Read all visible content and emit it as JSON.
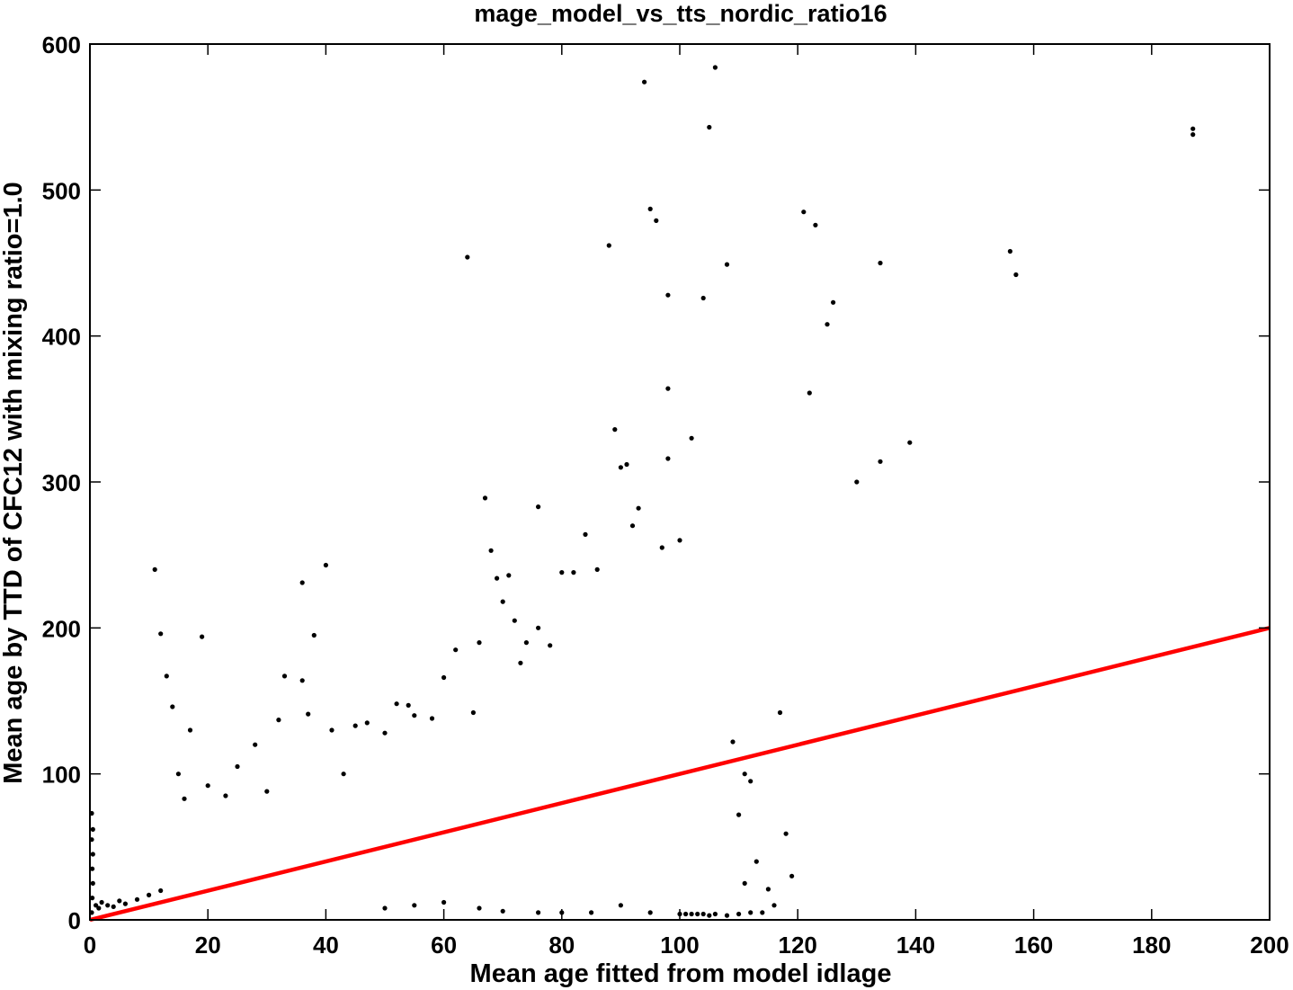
{
  "chart_data": {
    "type": "scatter",
    "title": "mage_model_vs_tts_nordic_ratio16",
    "xlabel": "Mean age fitted from model idlage",
    "ylabel": "Mean age by TTD of CFC12 with mixing ratio=1.0",
    "xlim": [
      0,
      200
    ],
    "ylim": [
      0,
      600
    ],
    "xticks": [
      "0",
      "20",
      "40",
      "60",
      "80",
      "100",
      "120",
      "140",
      "160",
      "180",
      "200"
    ],
    "yticks": [
      "0",
      "100",
      "200",
      "300",
      "400",
      "500",
      "600"
    ],
    "grid": false,
    "legend": "none",
    "colors": {
      "points": "#000000",
      "line": "#ff0000",
      "axes": "#000000"
    },
    "reference_line": {
      "x": [
        0,
        200
      ],
      "y": [
        0,
        200
      ]
    },
    "series": [
      {
        "points": [
          [
            0.3,
            5
          ],
          [
            0.4,
            15
          ],
          [
            0.5,
            25
          ],
          [
            0.4,
            35
          ],
          [
            0.5,
            45
          ],
          [
            0.3,
            55
          ],
          [
            0.5,
            62
          ],
          [
            0.3,
            73
          ],
          [
            1.0,
            10
          ],
          [
            1.5,
            8
          ],
          [
            2,
            12
          ],
          [
            3,
            10
          ],
          [
            4,
            9
          ],
          [
            5,
            13
          ],
          [
            6,
            11
          ],
          [
            8,
            14
          ],
          [
            10,
            17
          ],
          [
            12,
            20
          ],
          [
            11,
            240
          ],
          [
            12,
            196
          ],
          [
            13,
            167
          ],
          [
            14,
            146
          ],
          [
            15,
            100
          ],
          [
            16,
            83
          ],
          [
            17,
            130
          ],
          [
            19,
            194
          ],
          [
            20,
            92
          ],
          [
            23,
            85
          ],
          [
            25,
            105
          ],
          [
            28,
            120
          ],
          [
            30,
            88
          ],
          [
            32,
            137
          ],
          [
            33,
            167
          ],
          [
            36,
            164
          ],
          [
            36,
            231
          ],
          [
            37,
            141
          ],
          [
            38,
            195
          ],
          [
            40,
            243
          ],
          [
            41,
            130
          ],
          [
            43,
            100
          ],
          [
            45,
            133
          ],
          [
            47,
            135
          ],
          [
            50,
            128
          ],
          [
            52,
            148
          ],
          [
            54,
            147
          ],
          [
            55,
            140
          ],
          [
            58,
            138
          ],
          [
            60,
            166
          ],
          [
            62,
            185
          ],
          [
            64,
            454
          ],
          [
            65,
            142
          ],
          [
            66,
            190
          ],
          [
            67,
            289
          ],
          [
            68,
            253
          ],
          [
            69,
            234
          ],
          [
            70,
            218
          ],
          [
            71,
            236
          ],
          [
            72,
            205
          ],
          [
            73,
            176
          ],
          [
            74,
            190
          ],
          [
            76,
            283
          ],
          [
            76,
            200
          ],
          [
            78,
            188
          ],
          [
            80,
            238
          ],
          [
            82,
            238
          ],
          [
            84,
            264
          ],
          [
            86,
            240
          ],
          [
            88,
            462
          ],
          [
            89,
            336
          ],
          [
            90,
            310
          ],
          [
            91,
            312
          ],
          [
            92,
            270
          ],
          [
            93,
            282
          ],
          [
            94,
            574
          ],
          [
            95,
            487
          ],
          [
            96,
            479
          ],
          [
            97,
            255
          ],
          [
            98,
            428
          ],
          [
            98,
            364
          ],
          [
            98,
            316
          ],
          [
            100,
            260
          ],
          [
            102,
            330
          ],
          [
            104,
            426
          ],
          [
            105,
            543
          ],
          [
            106,
            584
          ],
          [
            108,
            449
          ],
          [
            109,
            122
          ],
          [
            110,
            72
          ],
          [
            111,
            25
          ],
          [
            113,
            40
          ],
          [
            115,
            21
          ],
          [
            117,
            142
          ],
          [
            118,
            59
          ],
          [
            119,
            30
          ],
          [
            121,
            485
          ],
          [
            122,
            361
          ],
          [
            123,
            476
          ],
          [
            125,
            408
          ],
          [
            126,
            423
          ],
          [
            130,
            300
          ],
          [
            134,
            450
          ],
          [
            134,
            314
          ],
          [
            139,
            327
          ],
          [
            156,
            458
          ],
          [
            157,
            442
          ],
          [
            187,
            542
          ],
          [
            187,
            538
          ],
          [
            100,
            4
          ],
          [
            101,
            4
          ],
          [
            102,
            4
          ],
          [
            103,
            4
          ],
          [
            104,
            4
          ],
          [
            105,
            3
          ],
          [
            106,
            4
          ],
          [
            108,
            3
          ],
          [
            110,
            4
          ],
          [
            112,
            5
          ],
          [
            111,
            100
          ],
          [
            112,
            95
          ],
          [
            114,
            5
          ],
          [
            116,
            10
          ],
          [
            95,
            5
          ],
          [
            90,
            10
          ],
          [
            85,
            5
          ],
          [
            80,
            5
          ],
          [
            76,
            5
          ],
          [
            70,
            6
          ],
          [
            66,
            8
          ],
          [
            60,
            12
          ],
          [
            55,
            10
          ],
          [
            50,
            8
          ]
        ]
      }
    ]
  }
}
